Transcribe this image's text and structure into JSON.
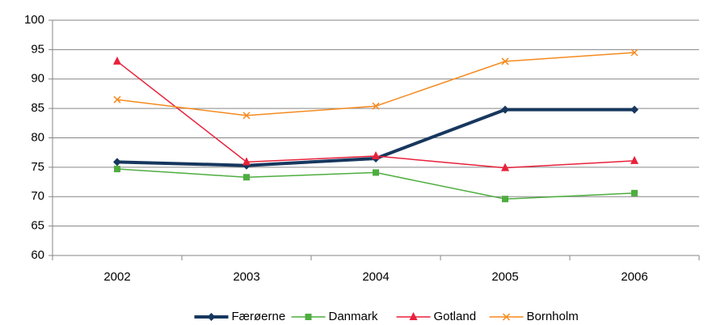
{
  "chart_data": {
    "type": "line",
    "categories": [
      "2002",
      "2003",
      "2004",
      "2005",
      "2006"
    ],
    "series": [
      {
        "name": "Færøerne",
        "color": "#17375e",
        "values": [
          75.9,
          75.3,
          76.5,
          84.8,
          84.8
        ]
      },
      {
        "name": "Danmark",
        "color": "#4ead3f",
        "values": [
          74.7,
          73.3,
          74.1,
          69.6,
          70.6
        ]
      },
      {
        "name": "Gotland",
        "color": "#e8213b",
        "values": [
          93.0,
          75.9,
          76.9,
          74.9,
          76.1
        ]
      },
      {
        "name": "Bornholm",
        "color": "#f58a1f",
        "values": [
          86.5,
          83.8,
          85.4,
          93.0,
          94.5
        ]
      }
    ],
    "ylim": [
      60,
      100
    ],
    "yticks": [
      60,
      65,
      70,
      75,
      80,
      85,
      90,
      95,
      100
    ],
    "grid": true,
    "legend": "bottom"
  }
}
